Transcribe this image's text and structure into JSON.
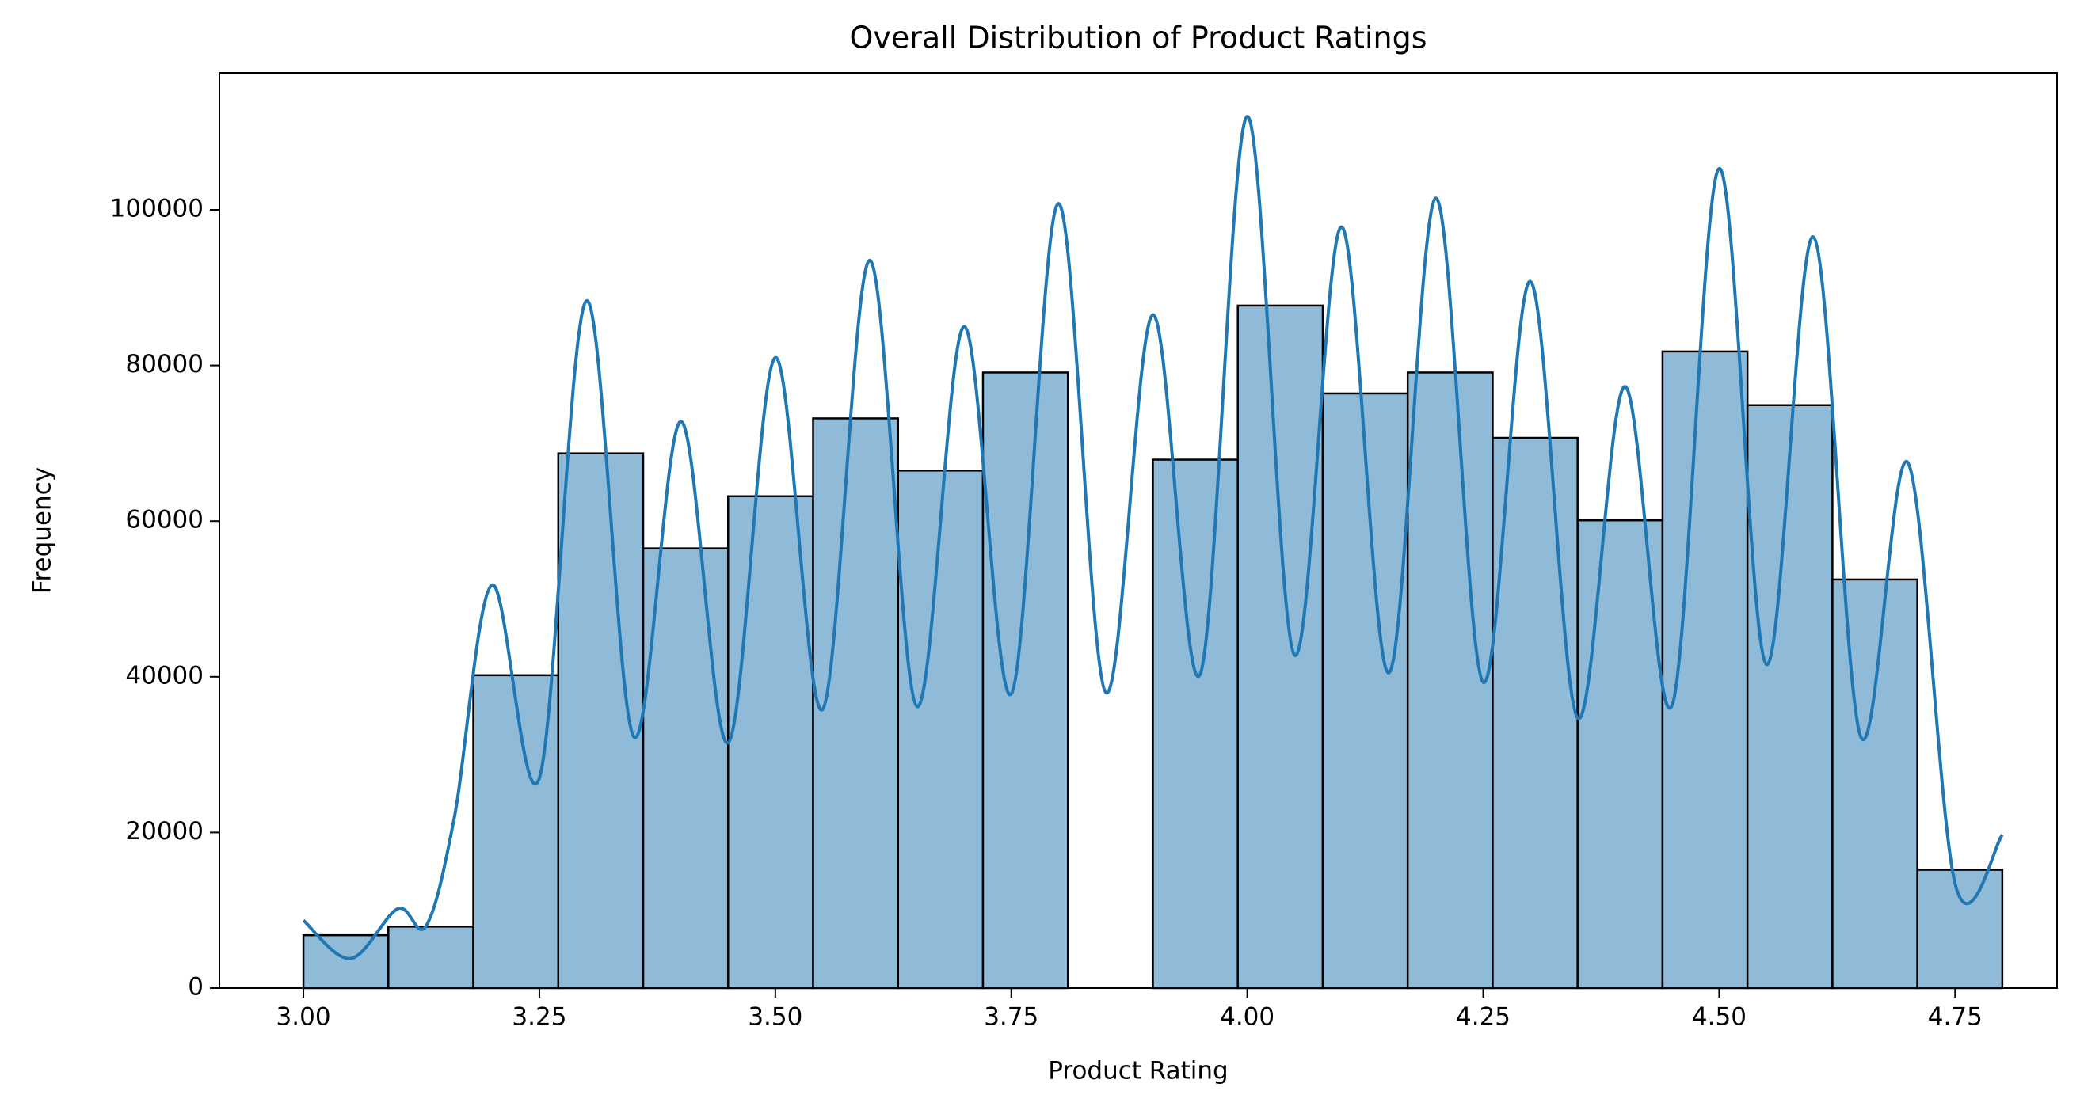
{
  "chart_data": {
    "type": "histogram",
    "title": "Overall Distribution of Product Ratings",
    "x_label": "Product Rating",
    "y_label": "Frequency",
    "bins": [
      3.0,
      3.09,
      3.18,
      3.27,
      3.36,
      3.45,
      3.54,
      3.63,
      3.72,
      3.81,
      3.9,
      3.99,
      4.08,
      4.17,
      4.26,
      4.35,
      4.44,
      4.53,
      4.62,
      4.71,
      4.8
    ],
    "values": [
      6800,
      7900,
      40200,
      68700,
      56500,
      63200,
      73200,
      66500,
      79100,
      0,
      67900,
      87700,
      76400,
      79100,
      70700,
      60100,
      81800,
      74900,
      52500,
      15200
    ],
    "color": "#8fbbd9",
    "edgecolor": "#000000",
    "kde": {
      "color": "#1f77b4",
      "x": [
        3.0,
        3.05,
        3.1,
        3.13,
        3.16,
        3.2,
        3.25,
        3.3,
        3.35,
        3.4,
        3.45,
        3.5,
        3.55,
        3.6,
        3.65,
        3.7,
        3.75,
        3.8,
        3.85,
        3.9,
        3.95,
        4.0,
        4.05,
        4.1,
        4.15,
        4.2,
        4.25,
        4.3,
        4.35,
        4.4,
        4.45,
        4.5,
        4.55,
        4.6,
        4.65,
        4.7,
        4.75,
        4.8
      ],
      "values": [
        8700,
        3800,
        10200,
        8000,
        22000,
        51800,
        27000,
        88300,
        32300,
        72800,
        31500,
        81000,
        35800,
        93500,
        36200,
        85000,
        37800,
        100800,
        38000,
        86500,
        40300,
        112000,
        42800,
        97800,
        40500,
        101500,
        39300,
        90800,
        34700,
        77300,
        36300,
        105300,
        41600,
        96500,
        32300,
        67500,
        13400,
        19700
      ]
    },
    "xlim": [
      2.911,
      4.858
    ],
    "ylim": [
      0,
      117600
    ],
    "xticks": [
      {
        "value": 3.0,
        "label": "3.00"
      },
      {
        "value": 3.25,
        "label": "3.25"
      },
      {
        "value": 3.5,
        "label": "3.50"
      },
      {
        "value": 3.75,
        "label": "3.75"
      },
      {
        "value": 4.0,
        "label": "4.00"
      },
      {
        "value": 4.25,
        "label": "4.25"
      },
      {
        "value": 4.5,
        "label": "4.50"
      },
      {
        "value": 4.75,
        "label": "4.75"
      }
    ],
    "yticks": [
      0,
      20000,
      40000,
      60000,
      80000,
      100000
    ]
  }
}
